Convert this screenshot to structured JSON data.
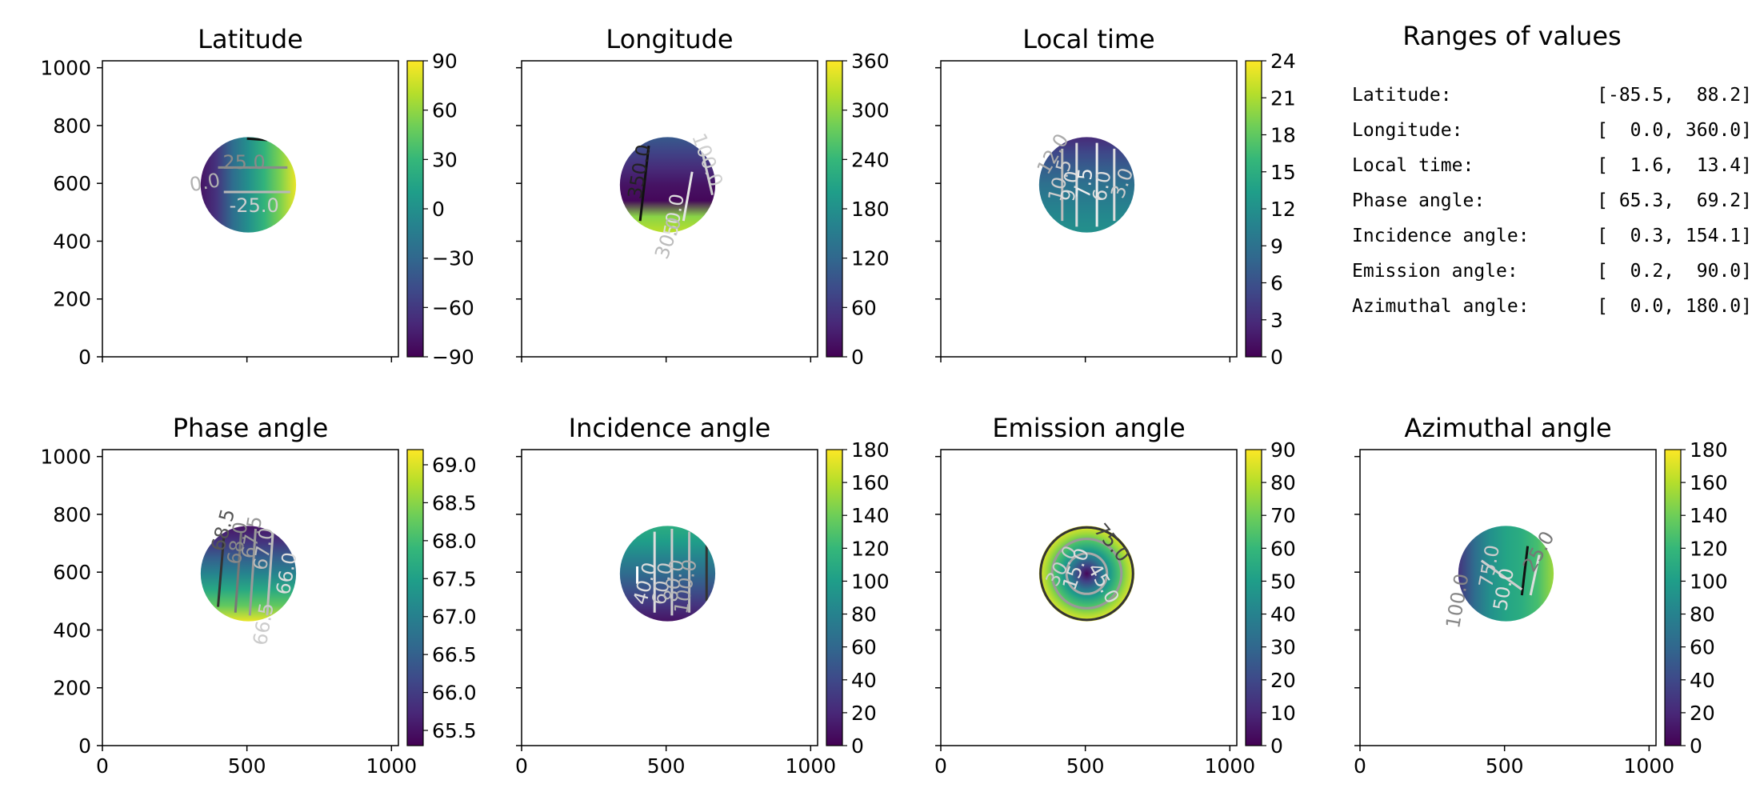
{
  "figure": {
    "ranges_panel": {
      "title": "Ranges of values",
      "rows": [
        {
          "name": "Latitude:",
          "value": "[-85.5,  88.2]"
        },
        {
          "name": "Longitude:",
          "value": "[  0.0, 360.0]"
        },
        {
          "name": "Local time:",
          "value": "[  1.6,  13.4]"
        },
        {
          "name": "Phase angle:",
          "value": "[ 65.3,  69.2]"
        },
        {
          "name": "Incidence angle:",
          "value": "[  0.3, 154.1]"
        },
        {
          "name": "Emission angle:",
          "value": "[  0.2,  90.0]"
        },
        {
          "name": "Azimuthal angle:",
          "value": "[  0.0, 180.0]"
        }
      ]
    }
  },
  "colors": {
    "colormap": [
      "#440154",
      "#482878",
      "#3e4989",
      "#31688e",
      "#26828e",
      "#1f9e89",
      "#35b779",
      "#6ece58",
      "#b5de2b",
      "#fde725"
    ]
  },
  "chart_data": [
    {
      "type": "heatmap",
      "title": "Latitude",
      "xlim": [
        0,
        1024
      ],
      "ylim": [
        0,
        1024
      ],
      "xticks": [
        "0",
        "500",
        "1000"
      ],
      "xtick_values": [
        0,
        500,
        1000
      ],
      "yticks": [
        "0",
        "200",
        "400",
        "600",
        "800",
        "1000"
      ],
      "ytick_values": [
        0,
        200,
        400,
        600,
        800,
        1000
      ],
      "show_xticklabels": false,
      "show_yticklabels": true,
      "disk": {
        "cx": 505,
        "cy": 595,
        "r": 165
      },
      "colorbar": {
        "min": -90,
        "max": 90,
        "ticks": [
          "90",
          "60",
          "30",
          "0",
          "−30",
          "−60",
          "−90"
        ],
        "tick_values": [
          90,
          60,
          30,
          0,
          -30,
          -60,
          -90
        ]
      },
      "gradient_angle": 180,
      "gradient_stops": [
        0.97,
        0.8,
        0.65,
        0.5,
        0.35,
        0.15,
        0.05
      ],
      "contour_labels": [
        {
          "text": "25.0",
          "x": 490,
          "y": 670,
          "color": "#8a8a8a",
          "rotate": 0
        },
        {
          "text": "0.0",
          "x": 355,
          "y": 600,
          "color": "#b0b0b0",
          "rotate": -10
        },
        {
          "text": "-25.0",
          "x": 525,
          "y": 520,
          "color": "#cfcfcf",
          "rotate": 0
        }
      ],
      "contour_lines": [
        {
          "x1": 400,
          "y1": 655,
          "x2": 640,
          "y2": 655,
          "color": "#8a8a8a"
        },
        {
          "x1": 420,
          "y1": 570,
          "x2": 650,
          "y2": 570,
          "color": "#b8b8b8"
        },
        {
          "x1": 500,
          "y1": 755,
          "x2": 570,
          "y2": 750,
          "color": "#111111"
        }
      ]
    },
    {
      "type": "heatmap",
      "title": "Longitude",
      "xlim": [
        0,
        1024
      ],
      "ylim": [
        0,
        1024
      ],
      "xticks": [
        "0",
        "500",
        "1000"
      ],
      "xtick_values": [
        0,
        500,
        1000
      ],
      "yticks": [
        "0",
        "200",
        "400",
        "600",
        "800",
        "1000"
      ],
      "ytick_values": [
        0,
        200,
        400,
        600,
        800,
        1000
      ],
      "show_xticklabels": false,
      "show_yticklabels": false,
      "disk": {
        "cx": 505,
        "cy": 595,
        "r": 165
      },
      "colorbar": {
        "min": 0,
        "max": 360,
        "ticks": [
          "360",
          "300",
          "240",
          "180",
          "120",
          "60",
          "0"
        ],
        "tick_values": [
          360,
          300,
          240,
          180,
          120,
          60,
          0
        ]
      },
      "gradient_angle": 90,
      "gradient_stops": [
        0.9,
        0.82,
        0.02,
        0.05,
        0.12,
        0.2,
        0.28
      ],
      "contour_labels": [
        {
          "text": "350.0",
          "x": 410,
          "y": 640,
          "color": "#222222",
          "rotate": -80
        },
        {
          "text": "100.0",
          "x": 640,
          "y": 680,
          "color": "#cfcfcf",
          "rotate": 70
        },
        {
          "text": "50.0",
          "x": 530,
          "y": 490,
          "color": "#dddddd",
          "rotate": -80
        },
        {
          "text": "30.0",
          "x": 510,
          "y": 410,
          "color": "#bbbbbb",
          "rotate": -70
        }
      ],
      "contour_lines": [
        {
          "x1": 440,
          "y1": 730,
          "x2": 410,
          "y2": 470,
          "color": "#111111"
        },
        {
          "x1": 620,
          "y1": 730,
          "x2": 660,
          "y2": 560,
          "color": "#cfcfcf"
        },
        {
          "x1": 560,
          "y1": 470,
          "x2": 590,
          "y2": 640,
          "color": "#e5e5e5"
        }
      ]
    },
    {
      "type": "heatmap",
      "title": "Local time",
      "xlim": [
        0,
        1024
      ],
      "ylim": [
        0,
        1024
      ],
      "xticks": [
        "0",
        "500",
        "1000"
      ],
      "xtick_values": [
        0,
        500,
        1000
      ],
      "yticks": [
        "0",
        "200",
        "400",
        "600",
        "800",
        "1000"
      ],
      "ytick_values": [
        0,
        200,
        400,
        600,
        800,
        1000
      ],
      "show_xticklabels": false,
      "show_yticklabels": false,
      "disk": {
        "cx": 505,
        "cy": 595,
        "r": 165
      },
      "colorbar": {
        "min": 0,
        "max": 24,
        "ticks": [
          "24",
          "21",
          "18",
          "15",
          "12",
          "9",
          "6",
          "3",
          "0"
        ],
        "tick_values": [
          24,
          21,
          18,
          15,
          12,
          9,
          6,
          3,
          0
        ]
      },
      "gradient_angle": 90,
      "gradient_stops": [
        0.5,
        0.47,
        0.42,
        0.37,
        0.3,
        0.22,
        0.12
      ],
      "contour_labels": [
        {
          "text": "12.0",
          "x": 390,
          "y": 700,
          "color": "#aaaaaa",
          "rotate": -60
        },
        {
          "text": "10.5",
          "x": 415,
          "y": 610,
          "color": "#cccccc",
          "rotate": -75
        },
        {
          "text": "9.0",
          "x": 450,
          "y": 590,
          "color": "#dddddd",
          "rotate": -80
        },
        {
          "text": "7.5",
          "x": 500,
          "y": 600,
          "color": "#eeeeee",
          "rotate": -85
        },
        {
          "text": "6.0",
          "x": 560,
          "y": 590,
          "color": "#dddddd",
          "rotate": -80
        },
        {
          "text": "3.0",
          "x": 630,
          "y": 600,
          "color": "#cccccc",
          "rotate": -70
        }
      ],
      "contour_lines": [
        {
          "x1": 420,
          "y1": 720,
          "x2": 420,
          "y2": 470,
          "color": "#bbbbbb"
        },
        {
          "x1": 470,
          "y1": 740,
          "x2": 470,
          "y2": 450,
          "color": "#dddddd"
        },
        {
          "x1": 540,
          "y1": 740,
          "x2": 540,
          "y2": 450,
          "color": "#eeeeee"
        },
        {
          "x1": 600,
          "y1": 720,
          "x2": 600,
          "y2": 470,
          "color": "#dddddd"
        }
      ]
    },
    {
      "type": "heatmap",
      "title": "Phase angle",
      "xlim": [
        0,
        1024
      ],
      "ylim": [
        0,
        1024
      ],
      "xticks": [
        "0",
        "500",
        "1000"
      ],
      "xtick_values": [
        0,
        500,
        1000
      ],
      "yticks": [
        "0",
        "200",
        "400",
        "600",
        "800",
        "1000"
      ],
      "ytick_values": [
        0,
        200,
        400,
        600,
        800,
        1000
      ],
      "show_xticklabels": true,
      "show_yticklabels": true,
      "disk": {
        "cx": 505,
        "cy": 595,
        "r": 165
      },
      "colorbar": {
        "min": 65.3,
        "max": 69.2,
        "ticks": [
          "69.0",
          "68.5",
          "68.0",
          "67.5",
          "67.0",
          "66.5",
          "66.0",
          "65.5"
        ],
        "tick_values": [
          69,
          68.5,
          68,
          67.5,
          67,
          66.5,
          66,
          65.5
        ]
      },
      "gradient_angle": 90,
      "gradient_stops": [
        0.97,
        0.75,
        0.6,
        0.45,
        0.3,
        0.15,
        0.05
      ],
      "contour_labels": [
        {
          "text": "68.5",
          "x": 420,
          "y": 745,
          "color": "#555555",
          "rotate": -75
        },
        {
          "text": "68.0",
          "x": 470,
          "y": 700,
          "color": "#888888",
          "rotate": -80
        },
        {
          "text": "67.5",
          "x": 520,
          "y": 720,
          "color": "#999999",
          "rotate": -80
        },
        {
          "text": "67.0",
          "x": 560,
          "y": 680,
          "color": "#bbbbbb",
          "rotate": -80
        },
        {
          "text": "66.5",
          "x": 560,
          "y": 420,
          "color": "#cccccc",
          "rotate": -80
        },
        {
          "text": "66.0",
          "x": 640,
          "y": 595,
          "color": "#dddddd",
          "rotate": -80
        }
      ],
      "contour_lines": [
        {
          "x1": 420,
          "y1": 720,
          "x2": 400,
          "y2": 480,
          "color": "#333333"
        },
        {
          "x1": 480,
          "y1": 740,
          "x2": 460,
          "y2": 460,
          "color": "#777777"
        },
        {
          "x1": 530,
          "y1": 750,
          "x2": 510,
          "y2": 450,
          "color": "#999999"
        },
        {
          "x1": 590,
          "y1": 740,
          "x2": 570,
          "y2": 450,
          "color": "#bbbbbb"
        }
      ]
    },
    {
      "type": "heatmap",
      "title": "Incidence angle",
      "xlim": [
        0,
        1024
      ],
      "ylim": [
        0,
        1024
      ],
      "xticks": [
        "0",
        "500",
        "1000"
      ],
      "xtick_values": [
        0,
        500,
        1000
      ],
      "yticks": [
        "0",
        "200",
        "400",
        "600",
        "800",
        "1000"
      ],
      "ytick_values": [
        0,
        200,
        400,
        600,
        800,
        1000
      ],
      "show_xticklabels": true,
      "show_yticklabels": false,
      "disk": {
        "cx": 505,
        "cy": 595,
        "r": 165
      },
      "colorbar": {
        "min": 0,
        "max": 180,
        "ticks": [
          "180",
          "160",
          "140",
          "120",
          "100",
          "80",
          "60",
          "40",
          "20",
          "0"
        ],
        "tick_values": [
          180,
          160,
          140,
          120,
          100,
          80,
          60,
          40,
          20,
          0
        ]
      },
      "gradient_angle": 90,
      "gradient_stops": [
        0.05,
        0.15,
        0.25,
        0.35,
        0.45,
        0.55,
        0.62
      ],
      "contour_labels": [
        {
          "text": "40.0",
          "x": 430,
          "y": 560,
          "color": "#dddddd",
          "rotate": -75
        },
        {
          "text": "60.0",
          "x": 490,
          "y": 560,
          "color": "#cccccc",
          "rotate": -80
        },
        {
          "text": "80.0",
          "x": 530,
          "y": 570,
          "color": "#bbbbbb",
          "rotate": -80
        },
        {
          "text": "100.0",
          "x": 570,
          "y": 550,
          "color": "#aaaaaa",
          "rotate": -80
        }
      ],
      "contour_lines": [
        {
          "x1": 400,
          "y1": 620,
          "x2": 400,
          "y2": 560,
          "color": "#ffffff"
        },
        {
          "x1": 460,
          "y1": 740,
          "x2": 460,
          "y2": 460,
          "color": "#dddddd"
        },
        {
          "x1": 520,
          "y1": 750,
          "x2": 520,
          "y2": 450,
          "color": "#cccccc"
        },
        {
          "x1": 580,
          "y1": 740,
          "x2": 580,
          "y2": 460,
          "color": "#bbbbbb"
        },
        {
          "x1": 640,
          "y1": 700,
          "x2": 640,
          "y2": 500,
          "color": "#333333"
        }
      ]
    },
    {
      "type": "heatmap",
      "title": "Emission angle",
      "xlim": [
        0,
        1024
      ],
      "ylim": [
        0,
        1024
      ],
      "xticks": [
        "0",
        "500",
        "1000"
      ],
      "xtick_values": [
        0,
        500,
        1000
      ],
      "yticks": [
        "0",
        "200",
        "400",
        "600",
        "800",
        "1000"
      ],
      "ytick_values": [
        0,
        200,
        400,
        600,
        800,
        1000
      ],
      "show_xticklabels": true,
      "show_yticklabels": false,
      "disk": {
        "cx": 505,
        "cy": 595,
        "r": 165
      },
      "colorbar": {
        "min": 0,
        "max": 90,
        "ticks": [
          "90",
          "80",
          "70",
          "60",
          "50",
          "40",
          "30",
          "20",
          "10",
          "0"
        ],
        "tick_values": [
          90,
          80,
          70,
          60,
          50,
          40,
          30,
          20,
          10,
          0
        ]
      },
      "gradient_angle": 0,
      "radial": true,
      "gradient_stops": [
        0.02,
        0.2,
        0.4,
        0.55,
        0.7,
        0.85,
        0.97
      ],
      "contour_labels": [
        {
          "text": "75.0",
          "x": 590,
          "y": 700,
          "color": "#444444",
          "rotate": 50
        },
        {
          "text": "30.0",
          "x": 420,
          "y": 620,
          "color": "#cccccc",
          "rotate": -60
        },
        {
          "text": "15.0",
          "x": 470,
          "y": 610,
          "color": "#dddddd",
          "rotate": -70
        },
        {
          "text": "45.0",
          "x": 560,
          "y": 560,
          "color": "#dddddd",
          "rotate": 60
        }
      ],
      "rings": [
        {
          "r": 160,
          "color": "#333333"
        },
        {
          "r": 120,
          "color": "#999999"
        },
        {
          "r": 70,
          "color": "#aaaaaa"
        }
      ],
      "contour_lines": []
    },
    {
      "type": "heatmap",
      "title": "Azimuthal angle",
      "xlim": [
        0,
        1024
      ],
      "ylim": [
        0,
        1024
      ],
      "xticks": [
        "0",
        "500",
        "1000"
      ],
      "xtick_values": [
        0,
        500,
        1000
      ],
      "yticks": [
        "0",
        "200",
        "400",
        "600",
        "800",
        "1000"
      ],
      "ytick_values": [
        0,
        200,
        400,
        600,
        800,
        1000
      ],
      "show_xticklabels": true,
      "show_yticklabels": false,
      "disk": {
        "cx": 505,
        "cy": 595,
        "r": 165
      },
      "colorbar": {
        "min": 0,
        "max": 180,
        "ticks": [
          "180",
          "160",
          "140",
          "120",
          "100",
          "80",
          "60",
          "40",
          "20",
          "0"
        ],
        "tick_values": [
          180,
          160,
          140,
          120,
          100,
          80,
          60,
          40,
          20,
          0
        ]
      },
      "gradient_angle": 0,
      "gradient_stops": [
        0.15,
        0.35,
        0.5,
        0.58,
        0.62,
        0.7,
        0.85
      ],
      "contour_labels": [
        {
          "text": "100.0",
          "x": 340,
          "y": 500,
          "color": "#888888",
          "rotate": -80
        },
        {
          "text": "75.0",
          "x": 450,
          "y": 620,
          "color": "#cccccc",
          "rotate": -80
        },
        {
          "text": "50.0",
          "x": 500,
          "y": 540,
          "color": "#dddddd",
          "rotate": -80
        },
        {
          "text": "25.0",
          "x": 620,
          "y": 670,
          "color": "#777777",
          "rotate": -60
        }
      ],
      "contour_lines": [
        {
          "x1": 580,
          "y1": 690,
          "x2": 560,
          "y2": 520,
          "color": "#111111"
        },
        {
          "x1": 620,
          "y1": 660,
          "x2": 590,
          "y2": 520,
          "color": "#dddddd"
        },
        {
          "x1": 420,
          "y1": 640,
          "x2": 560,
          "y2": 540,
          "color": "#cfcfcf"
        }
      ]
    }
  ]
}
